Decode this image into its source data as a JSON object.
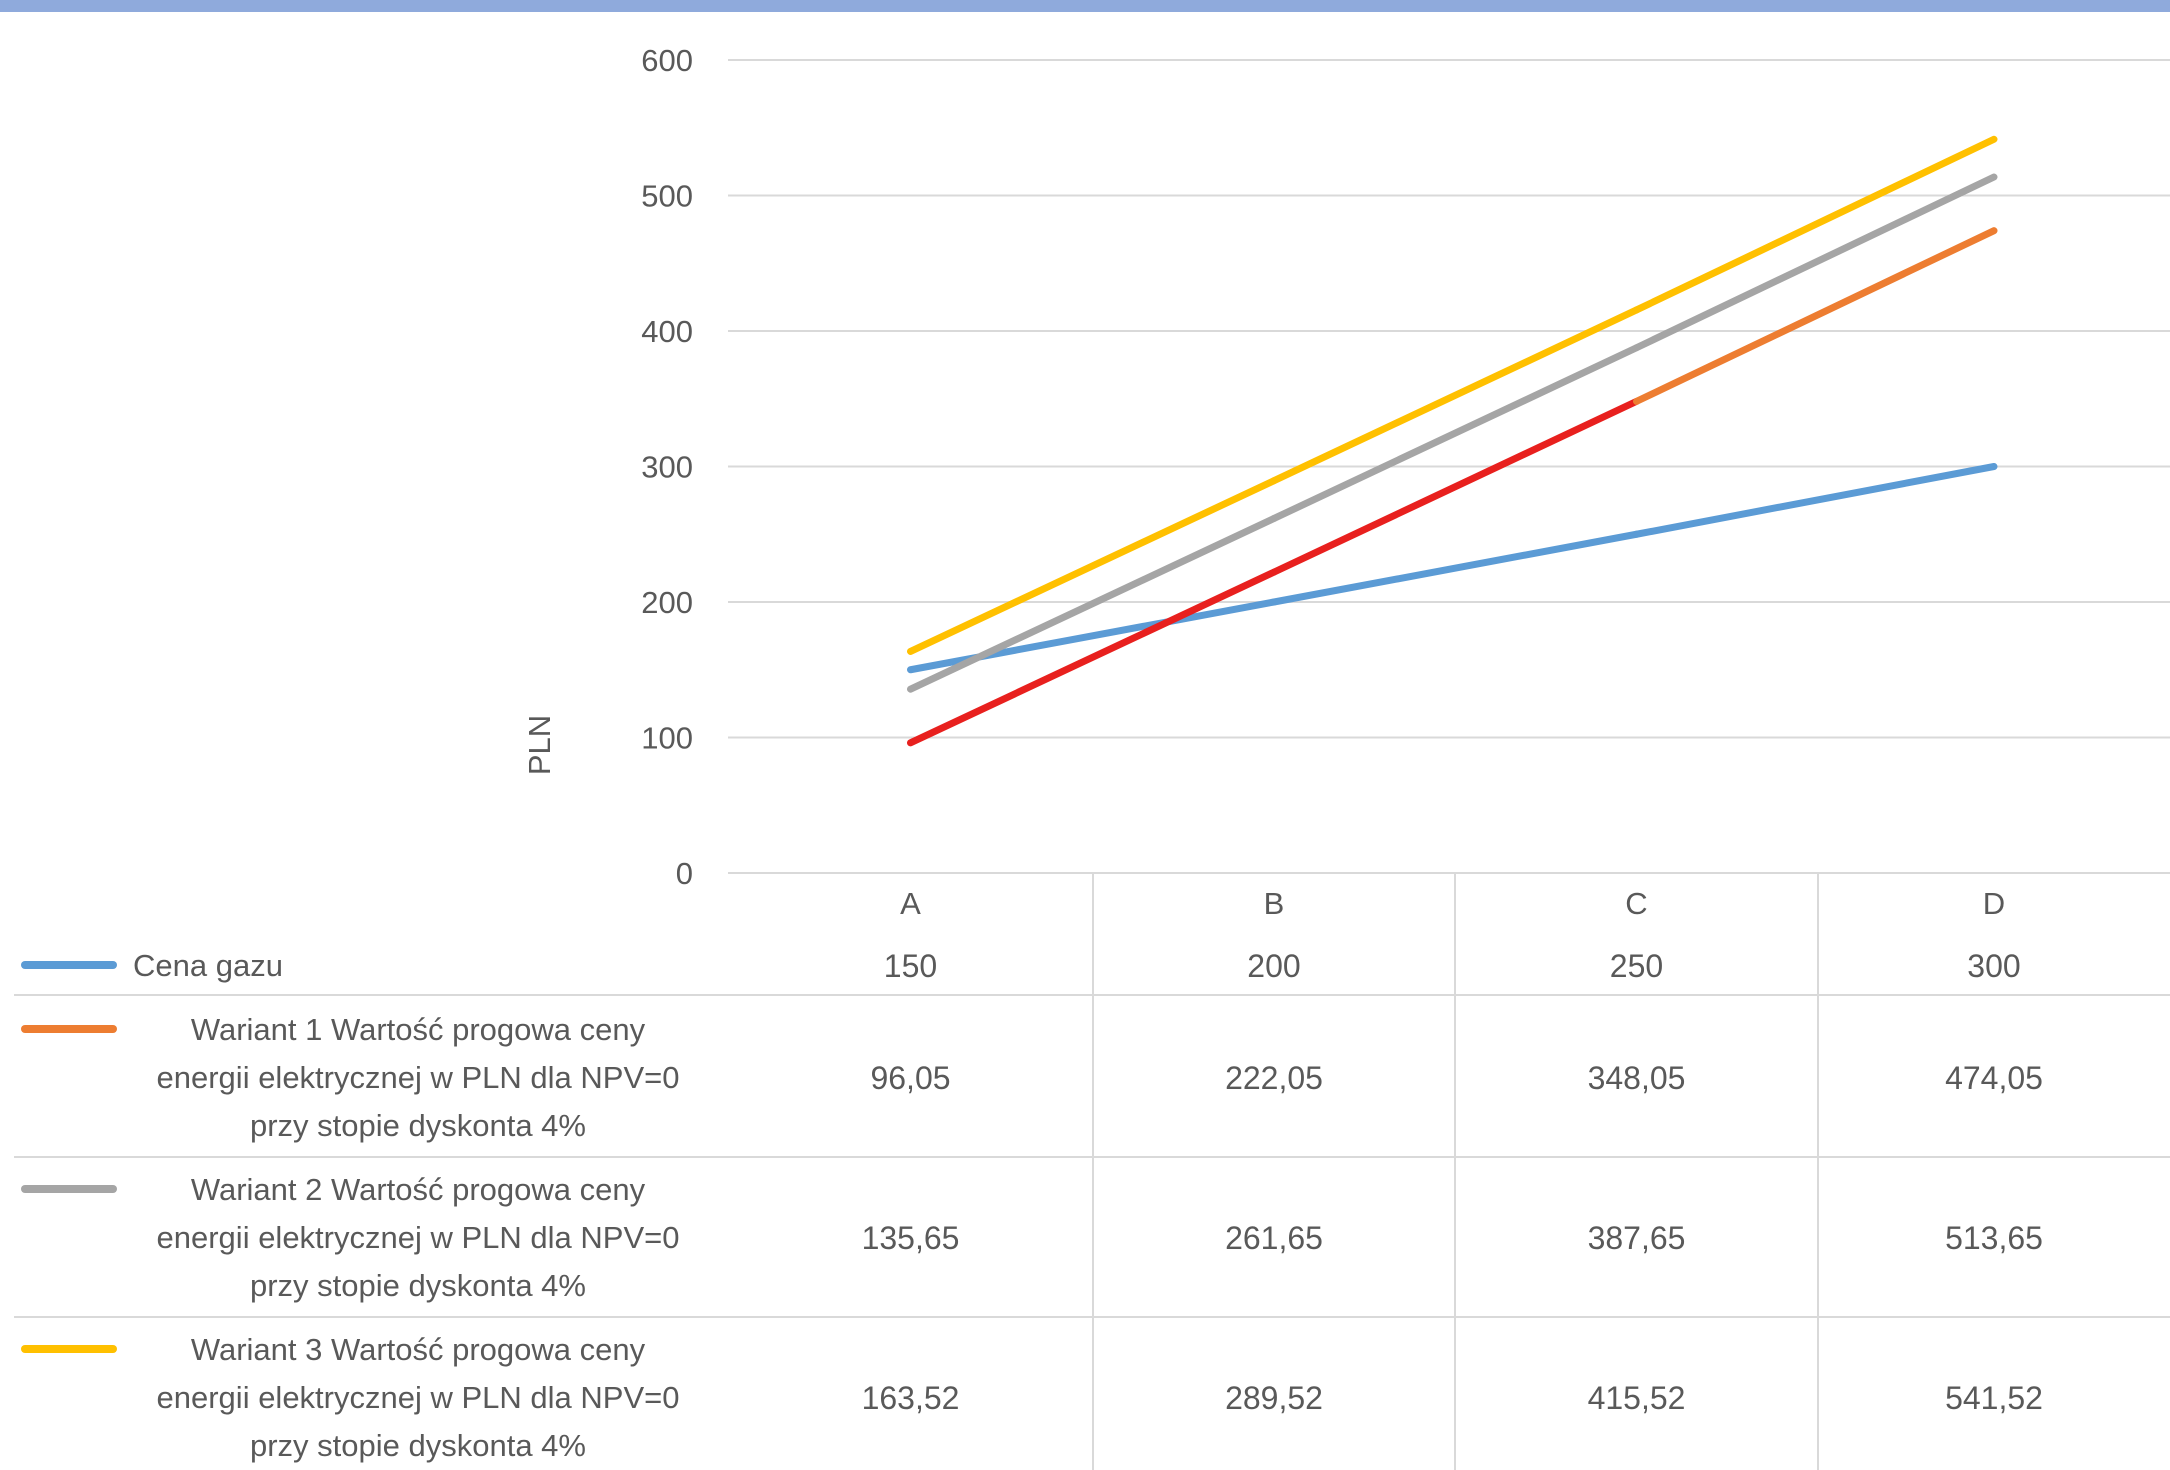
{
  "colors": {
    "top_band": "#8faadc",
    "gridline": "#d9d9d9",
    "table_border": "#d9d9d9",
    "text": "#595959"
  },
  "chart_data": {
    "type": "line",
    "title": "",
    "ylabel": "PLN",
    "xlabel": "",
    "ylim": [
      0,
      600
    ],
    "yticks": [
      "0",
      "100",
      "200",
      "300",
      "400",
      "500",
      "600"
    ],
    "grid": true,
    "legend": "data-table",
    "categories": [
      "A",
      "B",
      "C",
      "D"
    ],
    "table_header": [
      "150",
      "200",
      "250",
      "300"
    ],
    "series": [
      {
        "name": "Cena gazu",
        "legend_lines": [
          "Cena gazu"
        ],
        "color": "#5b9bd5",
        "values": [
          150,
          200,
          250,
          300
        ],
        "labels": [
          "150",
          "200",
          "250",
          "300"
        ]
      },
      {
        "name": "Wariant 1 Wartość progowa ceny energii elektrycznej w PLN dla NPV=0 przy stopie dyskonta 4%",
        "legend_lines": [
          "Wariant 1 Wartość progowa ceny",
          "energii elektrycznej w PLN dla NPV=0",
          "przy stopie dyskonta 4%"
        ],
        "color": "#ed7d31",
        "segment_colors": [
          "#e8201e",
          "#e8201e",
          "#ed7d31"
        ],
        "values": [
          96.05,
          222.05,
          348.05,
          474.05
        ],
        "labels": [
          "96,05",
          "222,05",
          "348,05",
          "474,05"
        ]
      },
      {
        "name": "Wariant 2 Wartość progowa ceny energii elektrycznej w PLN dla NPV=0 przy stopie dyskonta 4%",
        "legend_lines": [
          "Wariant 2 Wartość progowa ceny",
          "energii elektrycznej w PLN dla NPV=0",
          "przy stopie dyskonta 4%"
        ],
        "color": "#a5a5a5",
        "values": [
          135.65,
          261.65,
          387.65,
          513.65
        ],
        "labels": [
          "135,65",
          "261,65",
          "387,65",
          "513,65"
        ]
      },
      {
        "name": "Wariant 3 Wartość progowa ceny energii elektrycznej w PLN dla NPV=0 przy stopie dyskonta 4%",
        "legend_lines": [
          "Wariant 3 Wartość progowa ceny",
          "energii elektrycznej w PLN dla NPV=0",
          "przy stopie dyskonta 4%"
        ],
        "color": "#ffc000",
        "values": [
          163.52,
          289.52,
          415.52,
          541.52
        ],
        "labels": [
          "163,52",
          "289,52",
          "415,52",
          "541,52"
        ]
      }
    ]
  }
}
